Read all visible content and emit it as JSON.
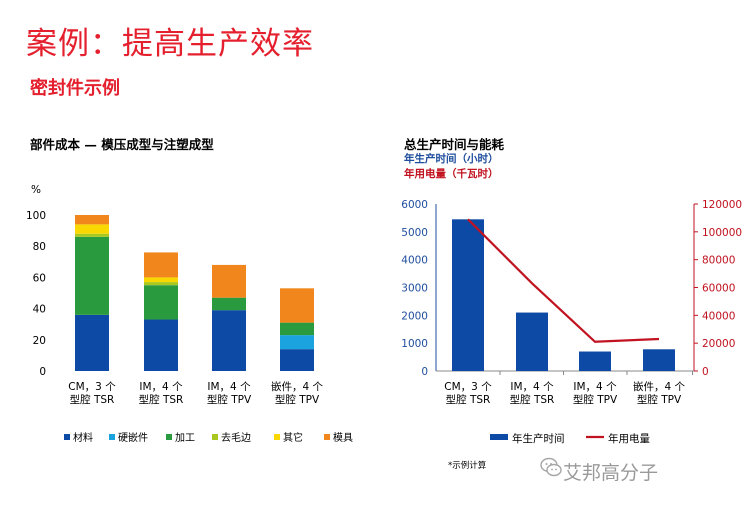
{
  "page": {
    "title": "案例：提高生产效率",
    "subtitle": "密封件示例",
    "footnote": "*示例计算",
    "watermark": "艾邦高分子"
  },
  "colors": {
    "title_red": "#e5202e",
    "材料": "#0d4aa5",
    "硬嵌件": "#1ba3e0",
    "加工": "#2a9a3e",
    "去毛边": "#a8c820",
    "其它": "#f8d800",
    "模具": "#f0861c",
    "年生产时间": "#0d4aa5",
    "年用电量": "#c1121f"
  },
  "chart_data": [
    {
      "type": "bar",
      "stacked": true,
      "title": "部件成本 — 模压成型与注塑成型",
      "ylabel": "%",
      "ylim": [
        0,
        100
      ],
      "yticks": [
        0,
        20,
        40,
        60,
        80,
        100
      ],
      "grid": false,
      "legend_position": "bottom",
      "categories": [
        "CM，3 个\n型腔 TSR",
        "IM，4 个\n型腔 TSR",
        "IM，4 个\n型腔 TPV",
        "嵌件，4 个\n型腔 TPV"
      ],
      "series": [
        {
          "name": "材料",
          "values": [
            36,
            33,
            39,
            14
          ]
        },
        {
          "name": "硬嵌件",
          "values": [
            0,
            0,
            0,
            9
          ]
        },
        {
          "name": "加工",
          "values": [
            50,
            22,
            8,
            8
          ]
        },
        {
          "name": "去毛边",
          "values": [
            2,
            2,
            0,
            0
          ]
        },
        {
          "name": "其它",
          "values": [
            6,
            3,
            0,
            0
          ]
        },
        {
          "name": "模具",
          "values": [
            6,
            16,
            21,
            22
          ]
        }
      ]
    },
    {
      "type": "bar+line",
      "title": "总生产时间与能耗",
      "y1label": "年生产时间（小时）",
      "y2label": "年用电量（千瓦时）",
      "y1lim": [
        0,
        6000
      ],
      "y1ticks": [
        0,
        1000,
        2000,
        3000,
        4000,
        5000,
        6000
      ],
      "y2lim": [
        0,
        120000
      ],
      "y2ticks": [
        0,
        20000,
        40000,
        60000,
        80000,
        100000,
        120000
      ],
      "grid": false,
      "legend_position": "bottom",
      "categories": [
        "CM，3 个\n型腔 TSR",
        "IM，4 个\n型腔 TSR",
        "IM，4 个\n型腔 TPV",
        "嵌件，4 个\n型腔 TPV"
      ],
      "series": [
        {
          "name": "年生产时间",
          "type": "bar",
          "axis": "y1",
          "values": [
            5450,
            2100,
            700,
            780
          ]
        },
        {
          "name": "年用电量",
          "type": "line",
          "axis": "y2",
          "values": [
            109000,
            63000,
            21000,
            23000
          ]
        }
      ]
    }
  ]
}
